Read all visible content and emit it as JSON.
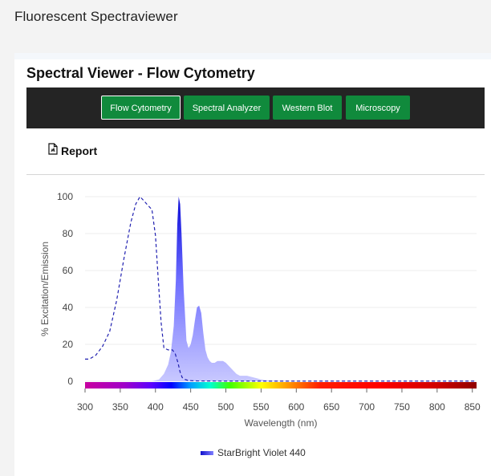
{
  "app": {
    "title": "Fluorescent Spectraviewer"
  },
  "viewer": {
    "title": "Spectral Viewer - Flow Cytometry"
  },
  "toolbar": {
    "tabs": [
      {
        "label": "Flow Cytometry",
        "active": true
      },
      {
        "label": "Spectral Analyzer",
        "active": false
      },
      {
        "label": "Western Blot",
        "active": false
      },
      {
        "label": "Microscopy",
        "active": false
      }
    ]
  },
  "report": {
    "label": "Report",
    "icon": "document-icon"
  },
  "colors": {
    "accent_green": "#108a3c",
    "toolbar_bg": "#242424",
    "emission_fill": "#8f8fff",
    "emission_peak": "#0a0ad8",
    "excitation_line": "#2020b0"
  },
  "chart_data": {
    "type": "area",
    "xlabel": "Wavelength (nm)",
    "ylabel": "% Excitation/Emission",
    "xlim": [
      300,
      856
    ],
    "ylim": [
      0,
      100
    ],
    "xticks": [
      300,
      350,
      400,
      450,
      500,
      550,
      600,
      650,
      700,
      750,
      800,
      850
    ],
    "yticks": [
      0,
      20,
      40,
      60,
      80,
      100
    ],
    "grid": true,
    "wavelength_color_bar": true,
    "legend_position": "bottom-center",
    "series": [
      {
        "name": "StarBright Violet 440",
        "kind": "excitation",
        "style": "dashed",
        "x": [
          300,
          306,
          315,
          325,
          335,
          345,
          355,
          365,
          372,
          378,
          383,
          390,
          395,
          400,
          404,
          408,
          412,
          418,
          424,
          428,
          432,
          435,
          438,
          442,
          446,
          452,
          460,
          500,
          550,
          600,
          650,
          700,
          750,
          800,
          856
        ],
        "y": [
          12,
          12,
          14,
          19,
          27,
          44,
          66,
          86,
          96,
          100,
          98,
          95,
          93,
          79,
          55,
          32,
          18,
          17,
          17,
          15,
          10,
          5,
          2,
          1,
          0.5,
          0.3,
          0.2,
          0.1,
          0.1,
          0.1,
          0.1,
          0.1,
          0.1,
          0.1,
          0.1
        ]
      },
      {
        "name": "StarBright Violet 440",
        "kind": "emission",
        "style": "filled",
        "x": [
          395,
          405,
          412,
          418,
          422,
          426,
          429,
          431,
          433,
          435,
          437,
          440,
          444,
          447,
          450,
          453,
          456,
          459,
          462,
          465,
          468,
          471,
          474,
          477,
          480,
          484,
          488,
          492,
          496,
          500,
          505,
          510,
          515,
          520,
          525,
          530,
          535,
          540,
          545,
          550,
          560,
          570,
          600,
          650,
          700,
          750,
          800,
          856
        ],
        "y": [
          0,
          1,
          4,
          9,
          16,
          30,
          55,
          85,
          100,
          96,
          80,
          50,
          22,
          18,
          20,
          25,
          33,
          40,
          41,
          37,
          26,
          17,
          13,
          11,
          10,
          10,
          11,
          11,
          11,
          10,
          8,
          6,
          4,
          3,
          3,
          3,
          2.5,
          2,
          1.5,
          1,
          0.5,
          0.3,
          0.1,
          0,
          0,
          0,
          0,
          0
        ]
      }
    ]
  }
}
